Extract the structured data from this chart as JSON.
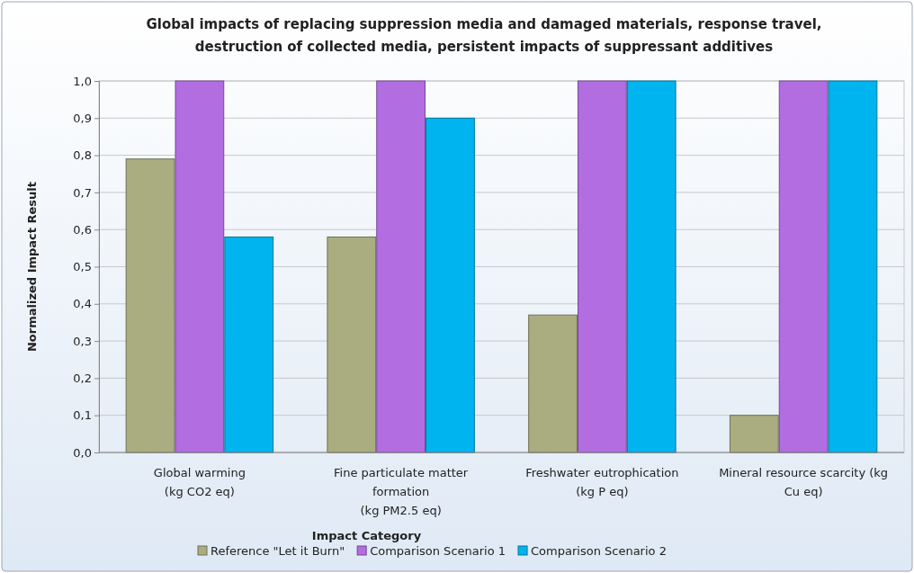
{
  "chart_data": {
    "type": "bar",
    "title": "Global impacts of replacing suppression media and damaged materials, response travel,\ndestruction of collected media, persistent impacts of suppressant additives",
    "xlabel": "Impact Category",
    "ylabel": "Normalized Impact Result",
    "categories": [
      "Global warming\n(kg CO2 eq)",
      "Fine particulate matter\nformation\n(kg PM2.5 eq)",
      "Freshwater eutrophication\n(kg P eq)",
      "Mineral resource scarcity (kg\nCu eq)"
    ],
    "series": [
      {
        "name": "Reference \"Let it Burn\"",
        "color": "#a9ad80",
        "values": [
          0.79,
          0.58,
          0.37,
          0.1
        ]
      },
      {
        "name": "Comparison Scenario 1",
        "color": "#b26ee0",
        "values": [
          1,
          1,
          1,
          1
        ]
      },
      {
        "name": "Comparison Scenario 2",
        "color": "#00b4ef",
        "values": [
          0.58,
          0.9,
          1,
          1
        ]
      }
    ],
    "ylim": [
      0,
      1
    ],
    "yticks": [
      {
        "value": 0,
        "label": "0,0"
      },
      {
        "value": 0.1,
        "label": "0,1"
      },
      {
        "value": 0.2,
        "label": "0,2"
      },
      {
        "value": 0.3,
        "label": "0,3"
      },
      {
        "value": 0.4,
        "label": "0,4"
      },
      {
        "value": 0.5,
        "label": "0,5"
      },
      {
        "value": 0.6,
        "label": "0,6"
      },
      {
        "value": 0.7,
        "label": "0,7"
      },
      {
        "value": 0.8,
        "label": "0,8"
      },
      {
        "value": 0.9,
        "label": "0,9"
      },
      {
        "value": 1,
        "label": "1,0"
      }
    ],
    "grid": "y",
    "legend": "bottom"
  }
}
